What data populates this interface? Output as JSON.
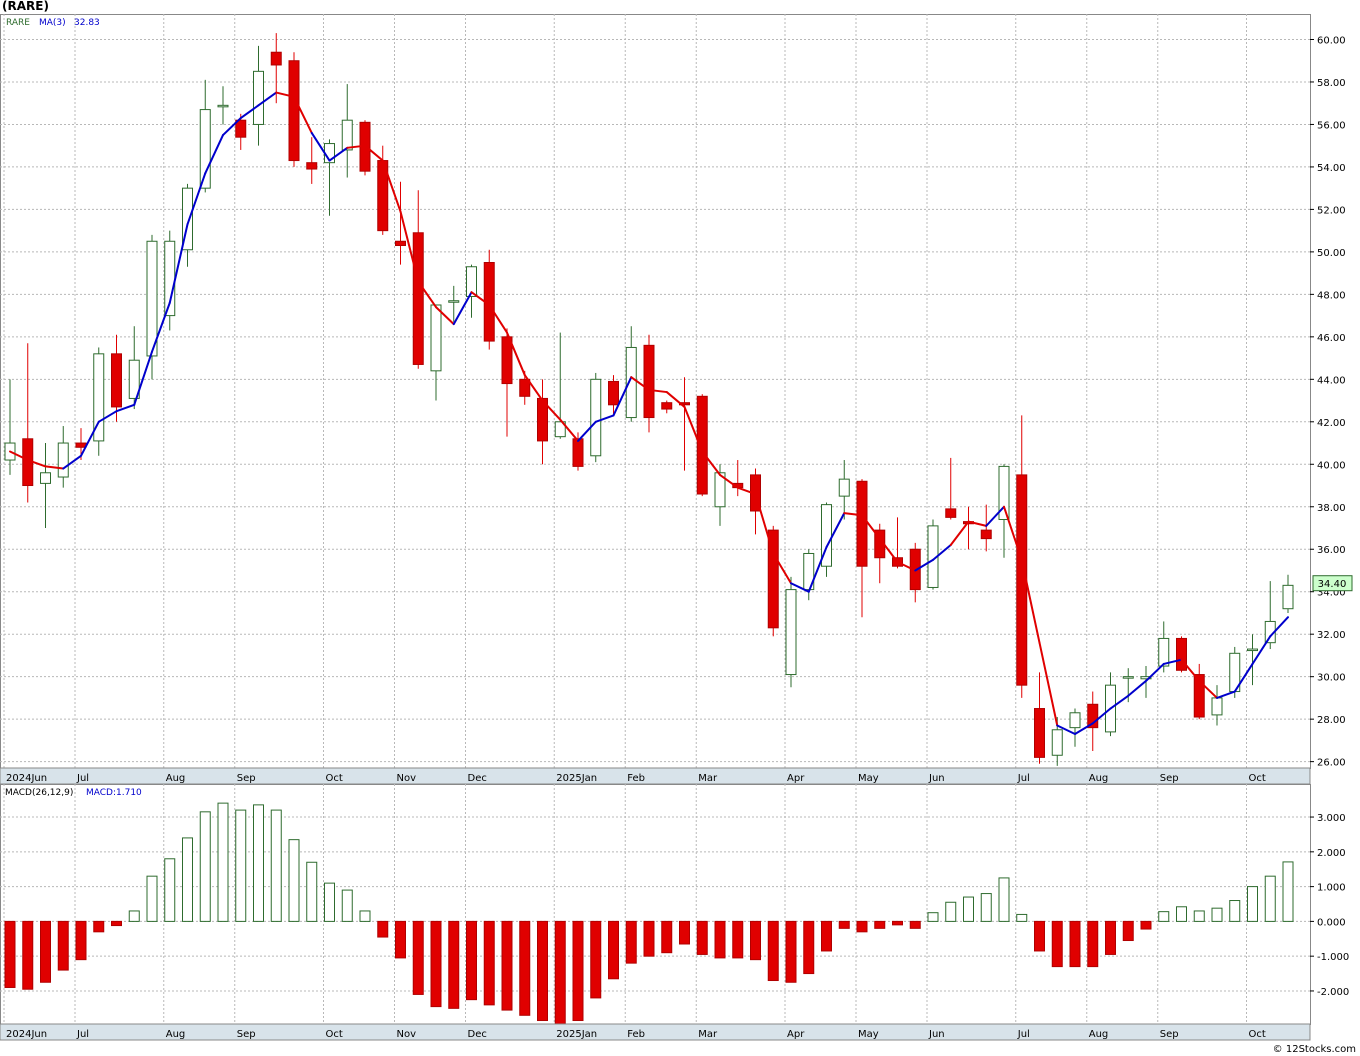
{
  "title": "(RARE)",
  "credit": "© 12Stocks.com",
  "colors": {
    "up": "#2e6b2e",
    "down": "#e00000",
    "ma_up": "#0000cc",
    "ma_down": "#e00000",
    "grid": "#b8b8b8",
    "axis_bar": "#d8e3ea",
    "last_price_border": "#2e6b2e"
  },
  "chart_data": [
    {
      "type": "candlestick",
      "ticker_label": "RARE",
      "ma_label": "MA(3)",
      "ma_value": "32.83",
      "last_price": "34.40",
      "ylim": [
        25.7,
        61.2
      ],
      "y_ticks": [
        26,
        28,
        30,
        32,
        34,
        36,
        38,
        40,
        42,
        44,
        46,
        48,
        50,
        52,
        54,
        56,
        58,
        60
      ],
      "y_tick_labels": [
        "26.00",
        "28.00",
        "30.00",
        "32.00",
        "34.00",
        "36.00",
        "38.00",
        "40.00",
        "42.00",
        "44.00",
        "46.00",
        "48.00",
        "50.00",
        "52.00",
        "54.00",
        "56.00",
        "58.00",
        "60.00"
      ],
      "x_tick_labels": [
        {
          "label": "2024Jun",
          "index": 0
        },
        {
          "label": "Jul",
          "index": 4
        },
        {
          "label": "Aug",
          "index": 9
        },
        {
          "label": "Sep",
          "index": 13
        },
        {
          "label": "Oct",
          "index": 18
        },
        {
          "label": "Nov",
          "index": 22
        },
        {
          "label": "Dec",
          "index": 26
        },
        {
          "label": "2025Jan",
          "index": 31
        },
        {
          "label": "Feb",
          "index": 35
        },
        {
          "label": "Mar",
          "index": 39
        },
        {
          "label": "Apr",
          "index": 44
        },
        {
          "label": "May",
          "index": 48
        },
        {
          "label": "Jun",
          "index": 52
        },
        {
          "label": "Jul",
          "index": 57
        },
        {
          "label": "Aug",
          "index": 61
        },
        {
          "label": "Sep",
          "index": 65
        },
        {
          "label": "Oct",
          "index": 70
        }
      ],
      "candles": [
        [
          40.2,
          41.0,
          44.0,
          39.5
        ],
        [
          41.2,
          39.0,
          45.7,
          38.2
        ],
        [
          39.1,
          39.6,
          41.0,
          37.0
        ],
        [
          39.4,
          41.0,
          41.8,
          38.9
        ],
        [
          41.0,
          40.8,
          41.7,
          40.2
        ],
        [
          41.1,
          45.2,
          45.5,
          40.4
        ],
        [
          45.2,
          42.7,
          46.1,
          42.0
        ],
        [
          43.1,
          44.9,
          46.5,
          42.6
        ],
        [
          45.1,
          50.5,
          50.8,
          44.0
        ],
        [
          47.0,
          50.5,
          51.0,
          46.3
        ],
        [
          50.1,
          53.0,
          53.2,
          49.3
        ],
        [
          53.0,
          56.7,
          58.1,
          52.8
        ],
        [
          56.9,
          56.9,
          57.8,
          56.0
        ],
        [
          56.2,
          55.4,
          56.5,
          54.8
        ],
        [
          56.0,
          58.5,
          59.7,
          55.0
        ],
        [
          59.4,
          58.8,
          60.3,
          57.0
        ],
        [
          59.0,
          54.3,
          59.4,
          54.0
        ],
        [
          54.2,
          53.9,
          55.4,
          53.2
        ],
        [
          54.2,
          55.1,
          55.3,
          51.7
        ],
        [
          54.8,
          56.2,
          57.9,
          53.5
        ],
        [
          56.1,
          53.8,
          56.2,
          53.6
        ],
        [
          54.3,
          51.0,
          55.0,
          50.8
        ],
        [
          50.5,
          50.3,
          53.3,
          49.4
        ],
        [
          50.9,
          44.7,
          52.9,
          44.5
        ],
        [
          44.4,
          47.5,
          47.5,
          43.0
        ],
        [
          47.7,
          47.7,
          48.4,
          46.7
        ],
        [
          47.9,
          49.3,
          49.4,
          46.9
        ],
        [
          49.5,
          45.8,
          50.1,
          45.4
        ],
        [
          46.0,
          43.8,
          46.4,
          41.3
        ],
        [
          44.0,
          43.2,
          44.4,
          42.8
        ],
        [
          43.1,
          41.1,
          44.0,
          40.0
        ],
        [
          41.3,
          42.0,
          46.2,
          41.2
        ],
        [
          41.2,
          39.9,
          41.5,
          39.7
        ],
        [
          40.4,
          44.0,
          44.3,
          40.1
        ],
        [
          43.9,
          42.8,
          44.2,
          42.3
        ],
        [
          42.2,
          45.5,
          46.5,
          42.0
        ],
        [
          45.6,
          42.2,
          46.1,
          41.5
        ],
        [
          42.9,
          42.6,
          43.0,
          42.4
        ],
        [
          42.9,
          42.8,
          44.1,
          39.7
        ],
        [
          43.2,
          38.6,
          43.3,
          38.5
        ],
        [
          38.0,
          39.6,
          40.0,
          37.1
        ],
        [
          39.1,
          38.9,
          40.2,
          38.5
        ],
        [
          39.5,
          37.8,
          39.8,
          36.7
        ],
        [
          36.9,
          32.3,
          37.1,
          31.9
        ],
        [
          30.1,
          34.1,
          34.7,
          29.5
        ],
        [
          34.1,
          35.8,
          36.0,
          33.6
        ],
        [
          35.2,
          38.1,
          38.2,
          34.7
        ],
        [
          38.5,
          39.3,
          40.2,
          37.4
        ],
        [
          39.2,
          35.2,
          39.3,
          32.8
        ],
        [
          36.9,
          35.6,
          37.2,
          34.4
        ],
        [
          35.6,
          35.2,
          37.5,
          35.1
        ],
        [
          36.0,
          34.1,
          36.3,
          33.5
        ],
        [
          34.2,
          37.1,
          37.4,
          34.1
        ],
        [
          37.9,
          37.5,
          40.3,
          37.4
        ],
        [
          37.3,
          37.2,
          38.0,
          36.0
        ],
        [
          36.9,
          36.5,
          38.1,
          35.9
        ],
        [
          37.4,
          39.9,
          40.0,
          35.6
        ],
        [
          39.5,
          29.6,
          42.3,
          29.0
        ],
        [
          28.5,
          26.2,
          30.2,
          25.9
        ],
        [
          26.3,
          27.5,
          28.1,
          25.8
        ],
        [
          27.6,
          28.3,
          28.5,
          26.7
        ],
        [
          28.7,
          27.6,
          29.3,
          26.5
        ],
        [
          27.4,
          29.6,
          30.2,
          27.2
        ],
        [
          30.0,
          30.0,
          30.4,
          28.8
        ],
        [
          29.9,
          30.0,
          30.5,
          29.0
        ],
        [
          30.5,
          31.8,
          32.6,
          30.2
        ],
        [
          31.8,
          30.3,
          31.9,
          30.2
        ],
        [
          30.1,
          28.1,
          30.6,
          28.0
        ],
        [
          28.2,
          29.0,
          29.6,
          27.7
        ],
        [
          29.3,
          31.1,
          31.4,
          29.0
        ],
        [
          31.3,
          31.3,
          32.0,
          29.6
        ],
        [
          31.6,
          32.6,
          34.5,
          31.3
        ],
        [
          33.2,
          34.3,
          34.8,
          33.0
        ]
      ],
      "ma3": [
        40.6,
        40.2,
        39.9,
        39.8,
        40.4,
        42.0,
        42.5,
        42.8,
        45.3,
        47.6,
        51.3,
        53.7,
        55.5,
        56.3,
        56.9,
        57.5,
        57.3,
        55.6,
        54.3,
        54.9,
        55.0,
        54.3,
        51.9,
        48.6,
        47.4,
        46.6,
        48.1,
        47.5,
        46.2,
        44.2,
        43.0,
        42.1,
        41.1,
        42.0,
        42.3,
        44.1,
        43.5,
        43.4,
        42.7,
        40.6,
        39.5,
        38.9,
        38.6,
        35.8,
        34.4,
        34.0,
        36.1,
        37.7,
        37.6,
        36.5,
        35.4,
        35.0,
        35.5,
        36.2,
        37.3,
        37.1,
        38.0,
        35.5,
        31.6,
        27.7,
        27.3,
        27.8,
        28.5,
        29.1,
        29.8,
        30.6,
        30.8,
        29.8,
        29.0,
        29.3,
        30.6,
        31.9,
        32.8
      ],
      "ma3_color": [
        "u",
        "d",
        "d",
        "d",
        "u",
        "u",
        "u",
        "u",
        "u",
        "u",
        "u",
        "u",
        "u",
        "u",
        "u",
        "u",
        "d",
        "d",
        "u",
        "u",
        "d",
        "d",
        "d",
        "d",
        "d",
        "d",
        "u",
        "d",
        "d",
        "d",
        "d",
        "d",
        "d",
        "u",
        "u",
        "u",
        "d",
        "d",
        "d",
        "d",
        "d",
        "d",
        "d",
        "d",
        "d",
        "u",
        "u",
        "u",
        "d",
        "d",
        "d",
        "d",
        "u",
        "u",
        "d",
        "d",
        "u",
        "d",
        "d",
        "d",
        "u",
        "u",
        "u",
        "u",
        "u",
        "u",
        "u",
        "d",
        "d",
        "u",
        "u",
        "u",
        "u"
      ]
    },
    {
      "type": "bar",
      "indicator_label": "MACD(26,12,9)",
      "value_label": "MACD:1.710",
      "ylim": [
        -2.95,
        3.95
      ],
      "y_ticks": [
        -2,
        -1,
        0,
        1,
        2,
        3
      ],
      "y_tick_labels": [
        "-2.000",
        "-1.000",
        "0.000",
        "1.000",
        "2.000",
        "3.000"
      ],
      "values": [
        -1.9,
        -1.95,
        -1.75,
        -1.4,
        -1.1,
        -0.3,
        -0.12,
        0.3,
        1.3,
        1.8,
        2.4,
        3.15,
        3.4,
        3.2,
        3.35,
        3.2,
        2.35,
        1.7,
        1.1,
        0.9,
        0.3,
        -0.45,
        -1.05,
        -2.1,
        -2.45,
        -2.5,
        -2.25,
        -2.4,
        -2.55,
        -2.7,
        -2.85,
        -2.95,
        -2.85,
        -2.2,
        -1.65,
        -1.2,
        -1.0,
        -0.9,
        -0.65,
        -0.95,
        -1.05,
        -1.05,
        -1.1,
        -1.7,
        -1.75,
        -1.5,
        -0.85,
        -0.2,
        -0.3,
        -0.2,
        -0.1,
        -0.2,
        0.25,
        0.55,
        0.7,
        0.8,
        1.25,
        0.2,
        -0.85,
        -1.3,
        -1.3,
        -1.3,
        -0.95,
        -0.55,
        -0.22,
        0.28,
        0.42,
        0.3,
        0.38,
        0.6,
        1.0,
        1.3,
        1.71
      ]
    }
  ]
}
